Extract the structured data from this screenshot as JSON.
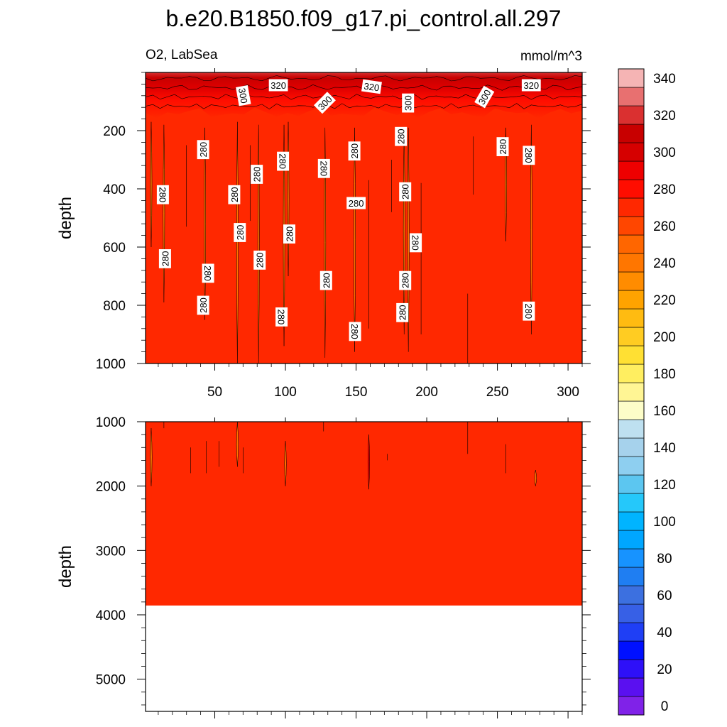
{
  "chart_data": {
    "type": "heatmap",
    "title": "b.e20.B1850.f09_g17.pi_control.all.297",
    "left_label": "O2, LabSea",
    "units": "mmol/m^3",
    "x_tick_labels": [
      "50",
      "100",
      "150",
      "200",
      "250",
      "300"
    ],
    "x_ticks": [
      50,
      100,
      150,
      200,
      250,
      300
    ],
    "x_range": [
      1,
      310
    ],
    "panels": [
      {
        "name": "upper",
        "ylabel": "depth",
        "y_range": [
          0,
          1000
        ],
        "y_inverted": true,
        "y_ticks": [
          200,
          400,
          600,
          800,
          1000
        ],
        "y_tick_labels": [
          "200",
          "400",
          "600",
          "800",
          "1000"
        ],
        "background_value": 285,
        "surface_gradient": {
          "from_depth": 0,
          "to_depth": 170,
          "values": [
            330,
            320,
            310,
            300,
            290
          ]
        },
        "contour_labels": [
          {
            "text": "300",
            "x": 70,
            "y": 80,
            "rotation": 80
          },
          {
            "text": "320",
            "x": 95,
            "y": 45,
            "rotation": 0
          },
          {
            "text": "300",
            "x": 128,
            "y": 105,
            "rotation": -45
          },
          {
            "text": "320",
            "x": 161,
            "y": 50,
            "rotation": 8
          },
          {
            "text": "300",
            "x": 187,
            "y": 105,
            "rotation": -90
          },
          {
            "text": "300",
            "x": 241,
            "y": 85,
            "rotation": -60
          },
          {
            "text": "320",
            "x": 274,
            "y": 45,
            "rotation": 0
          },
          {
            "text": "280",
            "x": 42,
            "y": 265,
            "rotation": -90
          },
          {
            "text": "280",
            "x": 13,
            "y": 420,
            "rotation": 90
          },
          {
            "text": "280",
            "x": 15,
            "y": 640,
            "rotation": -90
          },
          {
            "text": "280",
            "x": 45,
            "y": 690,
            "rotation": 90
          },
          {
            "text": "280",
            "x": 42,
            "y": 800,
            "rotation": -90
          },
          {
            "text": "280",
            "x": 64,
            "y": 420,
            "rotation": -90
          },
          {
            "text": "280",
            "x": 68,
            "y": 550,
            "rotation": -90
          },
          {
            "text": "280",
            "x": 80,
            "y": 350,
            "rotation": -90
          },
          {
            "text": "280",
            "x": 82,
            "y": 645,
            "rotation": -90
          },
          {
            "text": "280",
            "x": 98,
            "y": 305,
            "rotation": 90
          },
          {
            "text": "280",
            "x": 103,
            "y": 555,
            "rotation": -90
          },
          {
            "text": "280",
            "x": 97,
            "y": 840,
            "rotation": 90
          },
          {
            "text": "280",
            "x": 127,
            "y": 330,
            "rotation": 90
          },
          {
            "text": "280",
            "x": 129,
            "y": 715,
            "rotation": -90
          },
          {
            "text": "280",
            "x": 149,
            "y": 270,
            "rotation": -90
          },
          {
            "text": "280",
            "x": 150,
            "y": 450,
            "rotation": 0
          },
          {
            "text": "280",
            "x": 149,
            "y": 890,
            "rotation": 90
          },
          {
            "text": "280",
            "x": 182,
            "y": 220,
            "rotation": -90
          },
          {
            "text": "280",
            "x": 185,
            "y": 410,
            "rotation": -90
          },
          {
            "text": "280",
            "x": 192,
            "y": 585,
            "rotation": 90
          },
          {
            "text": "280",
            "x": 185,
            "y": 715,
            "rotation": -90
          },
          {
            "text": "280",
            "x": 183,
            "y": 825,
            "rotation": -90
          },
          {
            "text": "280",
            "x": 254,
            "y": 255,
            "rotation": -90
          },
          {
            "text": "280",
            "x": 272,
            "y": 285,
            "rotation": 90
          },
          {
            "text": "280",
            "x": 272,
            "y": 820,
            "rotation": 90
          }
        ]
      },
      {
        "name": "lower",
        "ylabel": "depth",
        "y_range": [
          1000,
          5500
        ],
        "y_inverted": true,
        "y_ticks": [
          1000,
          2000,
          3000,
          4000,
          5000
        ],
        "y_tick_labels": [
          "1000",
          "2000",
          "3000",
          "4000",
          "5000"
        ],
        "background_value": 285,
        "data_bottom_depth": 3850
      }
    ],
    "colorbar": {
      "tick_labels": [
        "0",
        "20",
        "40",
        "60",
        "80",
        "100",
        "120",
        "140",
        "160",
        "180",
        "200",
        "220",
        "240",
        "260",
        "280",
        "300",
        "320",
        "340"
      ],
      "colors": [
        "#8022e8",
        "#5a10f0",
        "#2e10f8",
        "#0010ff",
        "#1f3ff5",
        "#3760e6",
        "#3c70e0",
        "#1f7ef2",
        "#1793ff",
        "#00a6ff",
        "#00b4ff",
        "#25c8fa",
        "#5cc6f0",
        "#8ecff0",
        "#a6d2ec",
        "#bee0f0",
        "#fdfdc8",
        "#fff594",
        "#ffee60",
        "#ffe033",
        "#ffcc22",
        "#ffbb11",
        "#ffa300",
        "#ff8c00",
        "#ff7600",
        "#ff6600",
        "#ff4600",
        "#ff2800",
        "#ff0d00",
        "#ee0000",
        "#d60000",
        "#c80000",
        "#da3030",
        "#e87070",
        "#f5b4b4"
      ]
    }
  }
}
